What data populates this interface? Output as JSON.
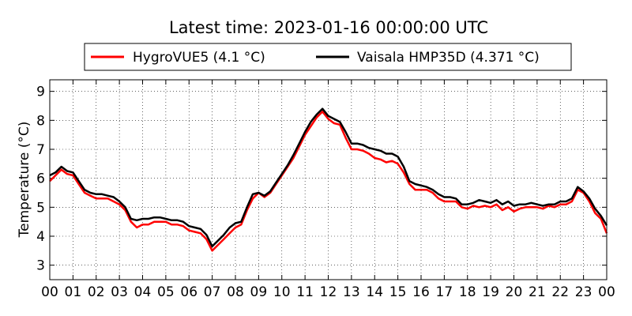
{
  "chart_data": {
    "type": "line",
    "title": "Latest time: 2023-01-16 00:00:00 UTC",
    "xlabel": "",
    "ylabel": "Temperature (°C)",
    "x_ticks": [
      "00",
      "01",
      "02",
      "03",
      "04",
      "05",
      "06",
      "07",
      "08",
      "09",
      "10",
      "11",
      "12",
      "13",
      "14",
      "15",
      "16",
      "17",
      "18",
      "19",
      "20",
      "21",
      "22",
      "23",
      "00"
    ],
    "xlim": [
      0,
      24
    ],
    "y_ticks": [
      "3",
      "4",
      "5",
      "6",
      "7",
      "8",
      "9"
    ],
    "ylim": [
      2.5,
      9.4
    ],
    "grid": true,
    "legend_placement": "top-center",
    "x_unit": "hour (UTC)",
    "series": [
      {
        "name": "HygroVUE5 (4.1 °C)",
        "color": "#ff0000",
        "x": [
          0,
          0.25,
          0.5,
          0.75,
          1,
          1.25,
          1.5,
          1.75,
          2,
          2.25,
          2.5,
          2.75,
          3,
          3.25,
          3.5,
          3.75,
          4,
          4.25,
          4.5,
          4.75,
          5,
          5.25,
          5.5,
          5.75,
          6,
          6.25,
          6.5,
          6.75,
          7,
          7.25,
          7.5,
          7.75,
          8,
          8.25,
          8.5,
          8.75,
          9,
          9.25,
          9.5,
          9.75,
          10,
          10.25,
          10.5,
          10.75,
          11,
          11.25,
          11.5,
          11.75,
          12,
          12.25,
          12.5,
          12.75,
          13,
          13.25,
          13.5,
          13.75,
          14,
          14.25,
          14.5,
          14.75,
          15,
          15.25,
          15.5,
          15.75,
          16,
          16.25,
          16.5,
          16.75,
          17,
          17.25,
          17.5,
          17.75,
          18,
          18.25,
          18.5,
          18.75,
          19,
          19.25,
          19.5,
          19.75,
          20,
          20.25,
          20.5,
          20.75,
          21,
          21.25,
          21.5,
          21.75,
          22,
          22.25,
          22.5,
          22.75,
          23,
          23.25,
          23.5,
          23.75,
          24
        ],
        "values": [
          5.9,
          6.1,
          6.3,
          6.15,
          6.1,
          5.8,
          5.5,
          5.4,
          5.3,
          5.3,
          5.3,
          5.2,
          5.1,
          4.9,
          4.5,
          4.3,
          4.4,
          4.4,
          4.5,
          4.5,
          4.5,
          4.4,
          4.4,
          4.35,
          4.2,
          4.15,
          4.1,
          3.9,
          3.5,
          3.7,
          3.9,
          4.1,
          4.3,
          4.4,
          4.9,
          5.3,
          5.5,
          5.35,
          5.5,
          5.8,
          6.1,
          6.4,
          6.7,
          7.1,
          7.5,
          7.8,
          8.1,
          8.3,
          8.05,
          7.9,
          7.85,
          7.4,
          7.0,
          7.0,
          6.95,
          6.85,
          6.7,
          6.65,
          6.55,
          6.6,
          6.5,
          6.2,
          5.8,
          5.6,
          5.6,
          5.6,
          5.5,
          5.3,
          5.2,
          5.2,
          5.2,
          5.0,
          4.95,
          5.05,
          5.0,
          5.05,
          5.0,
          5.1,
          4.9,
          5.0,
          4.85,
          4.95,
          5.0,
          5.0,
          5.0,
          4.95,
          5.05,
          5.0,
          5.1,
          5.1,
          5.2,
          5.6,
          5.5,
          5.2,
          4.8,
          4.6,
          4.1
        ]
      },
      {
        "name": "Vaisala HMP35D (4.371 °C)",
        "color": "#000000",
        "x": [
          0,
          0.25,
          0.5,
          0.75,
          1,
          1.25,
          1.5,
          1.75,
          2,
          2.25,
          2.5,
          2.75,
          3,
          3.25,
          3.5,
          3.75,
          4,
          4.25,
          4.5,
          4.75,
          5,
          5.25,
          5.5,
          5.75,
          6,
          6.25,
          6.5,
          6.75,
          7,
          7.25,
          7.5,
          7.75,
          8,
          8.25,
          8.5,
          8.75,
          9,
          9.25,
          9.5,
          9.75,
          10,
          10.25,
          10.5,
          10.75,
          11,
          11.25,
          11.5,
          11.75,
          12,
          12.25,
          12.5,
          12.75,
          13,
          13.25,
          13.5,
          13.75,
          14,
          14.25,
          14.5,
          14.75,
          15,
          15.25,
          15.5,
          15.75,
          16,
          16.25,
          16.5,
          16.75,
          17,
          17.25,
          17.5,
          17.75,
          18,
          18.25,
          18.5,
          18.75,
          19,
          19.25,
          19.5,
          19.75,
          20,
          20.25,
          20.5,
          20.75,
          21,
          21.25,
          21.5,
          21.75,
          22,
          22.25,
          22.5,
          22.75,
          23,
          23.25,
          23.5,
          23.75,
          24
        ],
        "values": [
          6.1,
          6.2,
          6.4,
          6.25,
          6.2,
          5.9,
          5.6,
          5.5,
          5.45,
          5.45,
          5.4,
          5.35,
          5.2,
          5.0,
          4.6,
          4.55,
          4.6,
          4.6,
          4.65,
          4.65,
          4.6,
          4.55,
          4.55,
          4.5,
          4.35,
          4.3,
          4.25,
          4.05,
          3.65,
          3.85,
          4.05,
          4.3,
          4.45,
          4.5,
          5.0,
          5.45,
          5.5,
          5.4,
          5.55,
          5.85,
          6.15,
          6.45,
          6.8,
          7.2,
          7.6,
          7.95,
          8.2,
          8.4,
          8.15,
          8.05,
          7.95,
          7.6,
          7.2,
          7.2,
          7.15,
          7.05,
          7.0,
          6.95,
          6.85,
          6.85,
          6.75,
          6.4,
          5.9,
          5.8,
          5.75,
          5.7,
          5.6,
          5.45,
          5.35,
          5.35,
          5.3,
          5.1,
          5.1,
          5.15,
          5.25,
          5.2,
          5.15,
          5.25,
          5.1,
          5.2,
          5.05,
          5.1,
          5.1,
          5.15,
          5.1,
          5.05,
          5.1,
          5.1,
          5.2,
          5.2,
          5.3,
          5.7,
          5.55,
          5.3,
          4.95,
          4.7,
          4.37
        ]
      }
    ]
  }
}
